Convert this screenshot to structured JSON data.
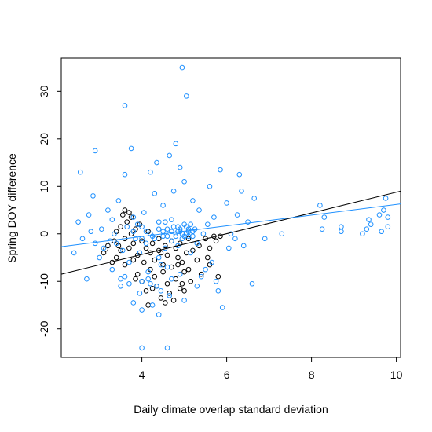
{
  "chart_data": {
    "type": "scatter",
    "title": "",
    "xlabel": "Daily climate overlap standard deviation",
    "ylabel": "Spring DOY difference",
    "xlim": [
      2.1,
      10.1
    ],
    "ylim": [
      -26.0,
      37.0
    ],
    "xticks": [
      4,
      6,
      8,
      10
    ],
    "yticks": [
      -20,
      -10,
      0,
      10,
      20,
      30
    ],
    "grid": false,
    "legend": "none",
    "series": [
      {
        "color": "#000000",
        "marker": "open-circle",
        "points": [
          [
            3.1,
            -4.0
          ],
          [
            3.15,
            -3.2
          ],
          [
            3.2,
            -2.5
          ],
          [
            3.3,
            -6.0
          ],
          [
            3.35,
            -1.5
          ],
          [
            3.4,
            0.5
          ],
          [
            3.4,
            -5.0
          ],
          [
            3.45,
            -2.5
          ],
          [
            3.5,
            1.5
          ],
          [
            3.5,
            -3.5
          ],
          [
            3.55,
            4.0
          ],
          [
            3.6,
            -1.0
          ],
          [
            3.6,
            -6.5
          ],
          [
            3.65,
            2.5
          ],
          [
            3.7,
            -3.0
          ],
          [
            3.7,
            4.5
          ],
          [
            3.75,
            0.0
          ],
          [
            3.8,
            -5.5
          ],
          [
            3.8,
            -2.0
          ],
          [
            3.85,
            1.0
          ],
          [
            3.9,
            -8.5
          ],
          [
            3.9,
            -4.5
          ],
          [
            3.95,
            2.0
          ],
          [
            4.0,
            -1.5
          ],
          [
            4.0,
            -10.0
          ],
          [
            4.05,
            -6.0
          ],
          [
            4.1,
            -3.0
          ],
          [
            4.1,
            -12.0
          ],
          [
            4.15,
            0.5
          ],
          [
            4.2,
            -7.5
          ],
          [
            4.2,
            -4.0
          ],
          [
            4.25,
            -2.0
          ],
          [
            4.3,
            -9.0
          ],
          [
            4.3,
            -5.5
          ],
          [
            4.35,
            -11.0
          ],
          [
            4.4,
            -1.0
          ],
          [
            4.4,
            -3.5
          ],
          [
            4.45,
            -13.5
          ],
          [
            4.5,
            -6.5
          ],
          [
            4.5,
            -8.0
          ],
          [
            4.55,
            -2.5
          ],
          [
            4.6,
            -10.5
          ],
          [
            4.6,
            -4.5
          ],
          [
            4.65,
            -12.5
          ],
          [
            4.7,
            -1.5
          ],
          [
            4.7,
            -7.0
          ],
          [
            4.75,
            -14.0
          ],
          [
            4.8,
            -3.0
          ],
          [
            4.8,
            -9.5
          ],
          [
            4.85,
            -5.0
          ],
          [
            4.9,
            -11.5
          ],
          [
            4.9,
            -2.0
          ],
          [
            4.95,
            -6.0
          ],
          [
            5.0,
            -8.0
          ],
          [
            5.0,
            -12.0
          ],
          [
            5.05,
            -4.0
          ],
          [
            5.1,
            -1.0
          ],
          [
            5.1,
            -7.5
          ],
          [
            5.15,
            -10.0
          ],
          [
            5.2,
            -3.5
          ],
          [
            5.3,
            -5.5
          ],
          [
            5.35,
            -2.5
          ],
          [
            5.4,
            -8.5
          ],
          [
            5.5,
            -1.0
          ],
          [
            5.55,
            -5.0
          ],
          [
            5.6,
            -3.0
          ],
          [
            5.7,
            -0.5
          ],
          [
            5.75,
            -1.5
          ],
          [
            5.8,
            -9.0
          ],
          [
            5.85,
            -0.5
          ],
          [
            3.6,
            5.0
          ],
          [
            3.75,
            3.5
          ],
          [
            4.15,
            -15.0
          ],
          [
            4.55,
            -14.5
          ],
          [
            4.25,
            -11.5
          ],
          [
            3.85,
            -9.5
          ],
          [
            4.95,
            -10.5
          ],
          [
            5.6,
            -6.5
          ],
          [
            4.45,
            -4.0
          ],
          [
            4.85,
            -6.5
          ]
        ]
      },
      {
        "color": "#1e90ff",
        "marker": "open-circle",
        "points": [
          [
            2.4,
            -4.0
          ],
          [
            2.5,
            2.5
          ],
          [
            2.55,
            13.0
          ],
          [
            2.6,
            -1.0
          ],
          [
            2.7,
            -9.5
          ],
          [
            2.75,
            4.0
          ],
          [
            2.8,
            0.5
          ],
          [
            2.85,
            8.0
          ],
          [
            2.9,
            17.5
          ],
          [
            2.9,
            -2.0
          ],
          [
            3.0,
            -5.0
          ],
          [
            3.05,
            1.0
          ],
          [
            3.1,
            -3.0
          ],
          [
            3.2,
            5.0
          ],
          [
            3.25,
            -1.5
          ],
          [
            3.3,
            3.0
          ],
          [
            3.35,
            0.0
          ],
          [
            3.4,
            -2.0
          ],
          [
            3.45,
            7.0
          ],
          [
            3.5,
            -9.5
          ],
          [
            3.55,
            -3.5
          ],
          [
            3.6,
            12.5
          ],
          [
            3.6,
            27.0
          ],
          [
            3.65,
            1.5
          ],
          [
            3.7,
            -6.0
          ],
          [
            3.75,
            18.0
          ],
          [
            3.8,
            0.5
          ],
          [
            3.8,
            3.5
          ],
          [
            3.85,
            -1.0
          ],
          [
            3.9,
            2.0
          ],
          [
            3.95,
            -4.0
          ],
          [
            4.0,
            1.5
          ],
          [
            4.0,
            -10.0
          ],
          [
            4.05,
            4.5
          ],
          [
            4.1,
            -2.0
          ],
          [
            4.15,
            -8.0
          ],
          [
            4.2,
            13.0
          ],
          [
            4.2,
            0.0
          ],
          [
            4.25,
            -15.0
          ],
          [
            4.3,
            8.5
          ],
          [
            4.3,
            -1.0
          ],
          [
            4.35,
            15.0
          ],
          [
            4.4,
            -5.0
          ],
          [
            4.4,
            2.5
          ],
          [
            4.45,
            -12.0
          ],
          [
            4.5,
            6.0
          ],
          [
            4.5,
            0.5
          ],
          [
            4.55,
            -3.0
          ],
          [
            4.6,
            1.0
          ],
          [
            4.6,
            -7.0
          ],
          [
            4.65,
            16.5
          ],
          [
            4.7,
            3.0
          ],
          [
            4.7,
            -1.5
          ],
          [
            4.75,
            9.0
          ],
          [
            4.8,
            0.0
          ],
          [
            4.8,
            19.0
          ],
          [
            4.85,
            -2.5
          ],
          [
            4.85,
            1.5
          ],
          [
            4.9,
            14.0
          ],
          [
            4.9,
            0.5
          ],
          [
            4.95,
            35.0
          ],
          [
            4.95,
            -1.0
          ],
          [
            5.0,
            2.0
          ],
          [
            5.0,
            11.0
          ],
          [
            5.05,
            0.0
          ],
          [
            5.05,
            29.0
          ],
          [
            5.1,
            -0.5
          ],
          [
            5.1,
            1.0
          ],
          [
            5.15,
            -4.0
          ],
          [
            5.2,
            7.0
          ],
          [
            5.2,
            0.5
          ],
          [
            5.3,
            -2.0
          ],
          [
            5.35,
            5.0
          ],
          [
            5.45,
            0.0
          ],
          [
            5.5,
            -7.5
          ],
          [
            5.55,
            2.0
          ],
          [
            5.6,
            10.0
          ],
          [
            5.65,
            -6.0
          ],
          [
            5.7,
            3.5
          ],
          [
            5.75,
            -10.0
          ],
          [
            5.8,
            -12.0
          ],
          [
            5.85,
            13.5
          ],
          [
            5.9,
            -15.5
          ],
          [
            6.0,
            6.5
          ],
          [
            6.05,
            -3.0
          ],
          [
            6.1,
            0.0
          ],
          [
            6.2,
            -1.0
          ],
          [
            6.25,
            4.0
          ],
          [
            6.3,
            12.5
          ],
          [
            6.35,
            9.0
          ],
          [
            6.4,
            -2.5
          ],
          [
            6.5,
            2.5
          ],
          [
            6.6,
            -10.5
          ],
          [
            6.65,
            7.5
          ],
          [
            6.9,
            -1.0
          ],
          [
            7.3,
            0.0
          ],
          [
            8.2,
            6.0
          ],
          [
            8.25,
            1.0
          ],
          [
            8.3,
            3.5
          ],
          [
            8.7,
            1.5
          ],
          [
            8.7,
            0.5
          ],
          [
            9.2,
            0.0
          ],
          [
            9.3,
            1.0
          ],
          [
            9.35,
            3.0
          ],
          [
            9.4,
            2.0
          ],
          [
            9.6,
            4.0
          ],
          [
            9.65,
            0.5
          ],
          [
            9.7,
            5.0
          ],
          [
            9.75,
            7.5
          ],
          [
            9.8,
            1.5
          ],
          [
            9.8,
            3.5
          ],
          [
            4.0,
            -1.0
          ],
          [
            4.1,
            0.5
          ],
          [
            4.25,
            -0.5
          ],
          [
            4.4,
            1.0
          ],
          [
            4.5,
            -0.5
          ],
          [
            4.55,
            2.5
          ],
          [
            4.6,
            -0.5
          ],
          [
            4.7,
            0.5
          ],
          [
            4.75,
            1.5
          ],
          [
            4.8,
            -0.5
          ],
          [
            4.85,
            0.5
          ],
          [
            4.9,
            1.0
          ],
          [
            4.95,
            0.0
          ],
          [
            5.0,
            -0.5
          ],
          [
            5.05,
            1.5
          ],
          [
            5.1,
            0.5
          ],
          [
            5.15,
            2.0
          ],
          [
            5.2,
            -0.5
          ],
          [
            5.25,
            1.0
          ],
          [
            3.7,
            -10.5
          ],
          [
            3.95,
            -12.5
          ],
          [
            4.15,
            -9.5
          ],
          [
            4.35,
            -11.0
          ],
          [
            4.65,
            -13.0
          ],
          [
            4.9,
            -8.5
          ],
          [
            5.0,
            -14.0
          ],
          [
            5.4,
            -9.0
          ],
          [
            3.5,
            -11.0
          ],
          [
            3.3,
            -7.5
          ],
          [
            4.0,
            -24.0
          ],
          [
            4.6,
            -24.0
          ],
          [
            4.4,
            -17.0
          ],
          [
            4.0,
            -16.0
          ],
          [
            3.8,
            -14.5
          ],
          [
            3.6,
            -9.0
          ],
          [
            4.2,
            -10.5
          ],
          [
            4.45,
            -6.5
          ],
          [
            4.7,
            -9.5
          ],
          [
            5.3,
            -11.0
          ]
        ]
      }
    ],
    "lines": [
      {
        "color": "#000000",
        "from": [
          2.1,
          -8.5
        ],
        "to": [
          10.1,
          9.0
        ]
      },
      {
        "color": "#1e90ff",
        "from": [
          2.1,
          -2.7
        ],
        "to": [
          10.1,
          6.3
        ]
      }
    ]
  }
}
